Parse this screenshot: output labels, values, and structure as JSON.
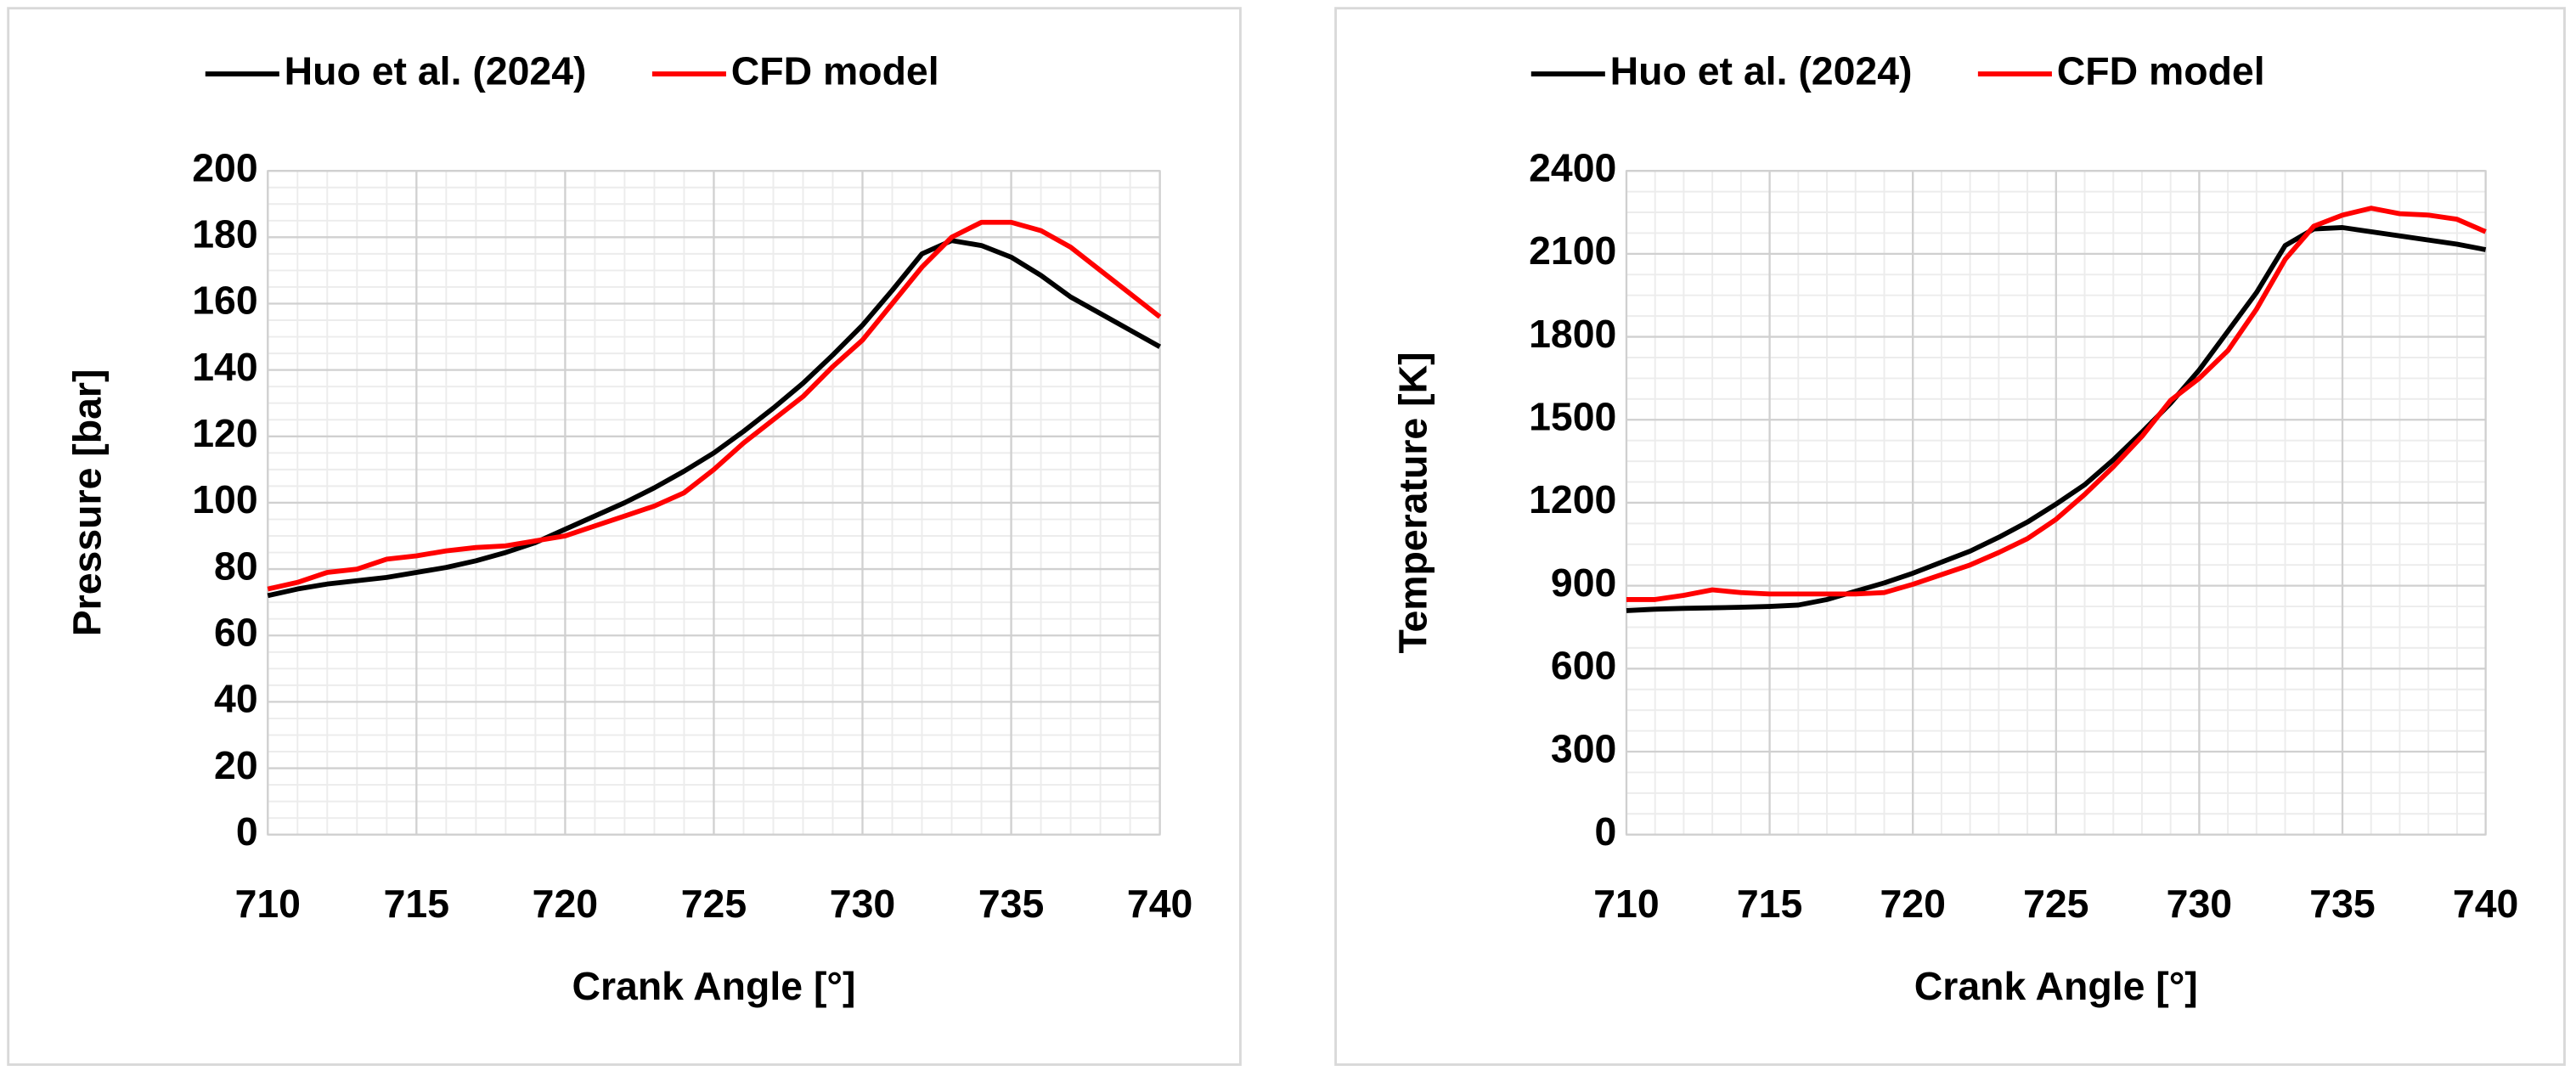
{
  "chart_data": [
    {
      "type": "line",
      "x_label": "Crank Angle [°]",
      "y_label": "Pressure [bar]",
      "x": [
        710,
        711,
        712,
        713,
        714,
        715,
        716,
        717,
        718,
        719,
        720,
        721,
        722,
        723,
        724,
        725,
        726,
        727,
        728,
        729,
        730,
        731,
        732,
        733,
        734,
        735,
        736,
        737,
        738,
        739,
        740
      ],
      "series": [
        {
          "name": "Huo et al. (2024)",
          "color": "#000000",
          "values": [
            72,
            74,
            75.5,
            76.5,
            77.5,
            79,
            80.5,
            82.5,
            85,
            88,
            92,
            96,
            100,
            104.5,
            109.5,
            115,
            121.5,
            128.5,
            136,
            144.5,
            153.5,
            164,
            175,
            179,
            177.5,
            174,
            168.5,
            162,
            157,
            152,
            147
          ]
        },
        {
          "name": "CFD model",
          "color": "#ff0000",
          "values": [
            74,
            76,
            79,
            80,
            83,
            84,
            85.5,
            86.5,
            87,
            88.5,
            90,
            93,
            96,
            99,
            103,
            110,
            118,
            125,
            132,
            141,
            149,
            160,
            171,
            180,
            184.5,
            184.5,
            182,
            177,
            170,
            163,
            156
          ]
        }
      ],
      "xlim": [
        710,
        740
      ],
      "xticks": [
        710,
        715,
        720,
        725,
        730,
        735,
        740
      ],
      "ylim": [
        0,
        200
      ],
      "yticks": [
        0,
        20,
        40,
        60,
        80,
        100,
        120,
        140,
        160,
        180,
        200
      ],
      "grid": true,
      "minor_grid": true,
      "legend": "top"
    },
    {
      "type": "line",
      "x_label": "Crank Angle [°]",
      "y_label": "Temperature [K]",
      "x": [
        710,
        711,
        712,
        713,
        714,
        715,
        716,
        717,
        718,
        719,
        720,
        721,
        722,
        723,
        724,
        725,
        726,
        727,
        728,
        729,
        730,
        731,
        732,
        733,
        734,
        735,
        736,
        737,
        738,
        739,
        740
      ],
      "series": [
        {
          "name": "Huo et al. (2024)",
          "color": "#000000",
          "values": [
            810,
            815,
            818,
            820,
            822,
            825,
            830,
            850,
            880,
            910,
            945,
            985,
            1025,
            1075,
            1130,
            1195,
            1265,
            1355,
            1455,
            1560,
            1680,
            1820,
            1960,
            2130,
            2190,
            2195,
            2180,
            2165,
            2150,
            2135,
            2115
          ]
        },
        {
          "name": "CFD model",
          "color": "#ff0000",
          "values": [
            850,
            850,
            865,
            885,
            875,
            870,
            870,
            870,
            870,
            875,
            905,
            940,
            975,
            1020,
            1070,
            1140,
            1230,
            1330,
            1440,
            1570,
            1650,
            1750,
            1900,
            2080,
            2200,
            2240,
            2265,
            2245,
            2240,
            2225,
            2180
          ]
        }
      ],
      "xlim": [
        710,
        740
      ],
      "xticks": [
        710,
        715,
        720,
        725,
        730,
        735,
        740
      ],
      "ylim": [
        0,
        2400
      ],
      "yticks": [
        0,
        300,
        600,
        900,
        1200,
        1500,
        1800,
        2100,
        2400
      ],
      "grid": true,
      "minor_grid": true,
      "legend": "top"
    }
  ]
}
